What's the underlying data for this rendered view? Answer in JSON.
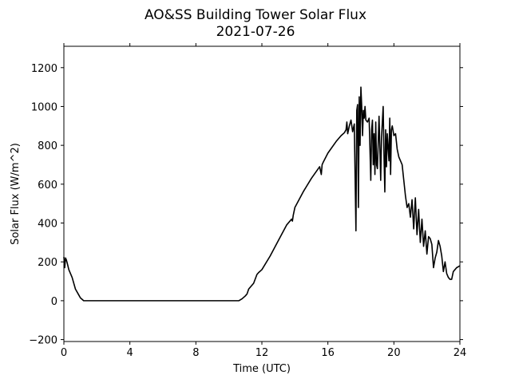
{
  "chart_data": {
    "type": "line",
    "title": "AO&SS Building Tower Solar Flux",
    "subtitle": "2021-07-26",
    "xlabel": "Time (UTC)",
    "ylabel": "Solar Flux (W/m^2)",
    "xlim": [
      0,
      24
    ],
    "ylim": [
      -210,
      1310
    ],
    "xticks": [
      0,
      4,
      8,
      12,
      16,
      20,
      24
    ],
    "xtick_labels": [
      "0",
      "4",
      "8",
      "12",
      "16",
      "20",
      "24"
    ],
    "yticks": [
      -200,
      0,
      200,
      400,
      600,
      800,
      1000,
      1200
    ],
    "ytick_labels": [
      "−200",
      "0",
      "200",
      "400",
      "600",
      "800",
      "1000",
      "1200"
    ],
    "grid": false,
    "line_color": "#000000",
    "series": [
      {
        "name": "",
        "x": [
          0.0,
          0.05,
          0.1,
          0.15,
          0.2,
          0.3,
          0.5,
          0.7,
          0.9,
          1.0,
          1.2,
          1.4,
          10.6,
          10.8,
          11.0,
          11.1,
          11.2,
          11.5,
          11.7,
          11.8,
          12.0,
          12.5,
          13.0,
          13.5,
          13.8,
          13.85,
          13.9,
          14.0,
          14.5,
          15.0,
          15.5,
          15.6,
          15.65,
          15.7,
          16.0,
          16.5,
          16.8,
          17.0,
          17.1,
          17.15,
          17.2,
          17.3,
          17.4,
          17.5,
          17.6,
          17.7,
          17.75,
          17.8,
          17.85,
          17.9,
          17.95,
          18.0,
          18.05,
          18.1,
          18.15,
          18.2,
          18.25,
          18.3,
          18.4,
          18.5,
          18.6,
          18.65,
          18.7,
          18.75,
          18.8,
          18.85,
          18.9,
          18.95,
          19.0,
          19.1,
          19.2,
          19.25,
          19.3,
          19.35,
          19.4,
          19.45,
          19.5,
          19.55,
          19.6,
          19.7,
          19.75,
          19.8,
          19.85,
          19.9,
          20.0,
          20.1,
          20.2,
          20.3,
          20.4,
          20.5,
          20.6,
          20.7,
          20.8,
          20.9,
          21.0,
          21.1,
          21.2,
          21.3,
          21.4,
          21.5,
          21.6,
          21.7,
          21.8,
          21.9,
          22.0,
          22.1,
          22.2,
          22.3,
          22.4,
          22.5,
          22.6,
          22.7,
          22.8,
          22.9,
          23.0,
          23.1,
          23.2,
          23.3,
          23.4,
          23.5,
          23.6,
          23.7,
          23.8,
          23.9,
          24.0
        ],
        "y": [
          225,
          170,
          220,
          210,
          195,
          160,
          120,
          60,
          30,
          15,
          0,
          0,
          0,
          10,
          25,
          35,
          60,
          90,
          135,
          145,
          160,
          230,
          310,
          390,
          420,
          410,
          440,
          480,
          560,
          630,
          690,
          650,
          700,
          710,
          760,
          820,
          850,
          865,
          880,
          920,
          860,
          900,
          930,
          870,
          910,
          360,
          980,
          1010,
          480,
          1050,
          800,
          1100,
          1000,
          850,
          980,
          940,
          1000,
          930,
          920,
          940,
          620,
          880,
          930,
          700,
          860,
          650,
          920,
          700,
          680,
          950,
          620,
          840,
          920,
          1000,
          750,
          560,
          880,
          690,
          860,
          720,
          940,
          650,
          880,
          900,
          850,
          860,
          780,
          740,
          720,
          700,
          620,
          540,
          480,
          500,
          430,
          520,
          370,
          530,
          340,
          470,
          300,
          420,
          280,
          360,
          240,
          330,
          320,
          290,
          170,
          220,
          250,
          310,
          280,
          230,
          150,
          200,
          140,
          120,
          110,
          110,
          150,
          160,
          170,
          175,
          180
        ]
      }
    ]
  }
}
